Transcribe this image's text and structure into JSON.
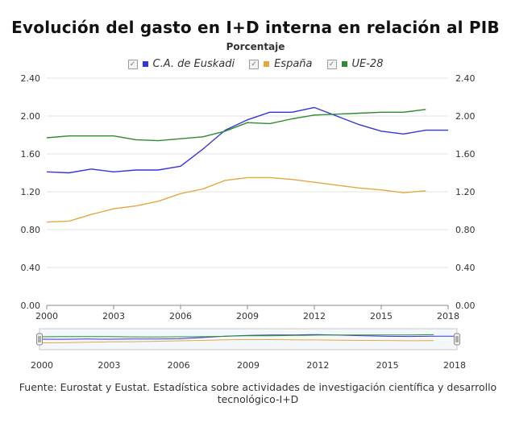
{
  "title": "Evolución del gasto en I+D interna en relación al PIB",
  "subtitle": "Porcentaje",
  "source": "Fuente: Eurostat y Eustat. Estadística sobre actividades de investigación científica y desarrollo tecnológico-I+D",
  "checkbox_glyph": "✓",
  "chart_data": {
    "type": "line",
    "x": [
      2000,
      2001,
      2002,
      2003,
      2004,
      2005,
      2006,
      2007,
      2008,
      2009,
      2010,
      2011,
      2012,
      2013,
      2014,
      2015,
      2016,
      2017,
      2018
    ],
    "xlim": [
      2000,
      2018
    ],
    "ylim": [
      0,
      2.4
    ],
    "yticks": [
      "0.00",
      "0.40",
      "0.80",
      "1.20",
      "1.60",
      "2.00",
      "2.40"
    ],
    "xticks": [
      "2000",
      "2003",
      "2006",
      "2009",
      "2012",
      "2015",
      "2018"
    ],
    "grid": true,
    "legend_position": "top-center",
    "series": [
      {
        "name": "C.A. de Euskadi",
        "color": "#3636d6",
        "values": [
          1.41,
          1.4,
          1.44,
          1.41,
          1.43,
          1.43,
          1.47,
          1.65,
          1.85,
          1.96,
          2.04,
          2.04,
          2.09,
          2.0,
          1.91,
          1.84,
          1.81,
          1.85,
          1.85
        ]
      },
      {
        "name": "España",
        "color": "#e3a840",
        "values": [
          0.88,
          0.89,
          0.96,
          1.02,
          1.05,
          1.1,
          1.18,
          1.23,
          1.32,
          1.35,
          1.35,
          1.33,
          1.3,
          1.27,
          1.24,
          1.22,
          1.19,
          1.21,
          null
        ]
      },
      {
        "name": "UE-28",
        "color": "#2e8b2e",
        "values": [
          1.77,
          1.79,
          1.79,
          1.79,
          1.75,
          1.74,
          1.76,
          1.78,
          1.84,
          1.93,
          1.92,
          1.97,
          2.01,
          2.02,
          2.03,
          2.04,
          2.04,
          2.07,
          null
        ]
      }
    ]
  }
}
